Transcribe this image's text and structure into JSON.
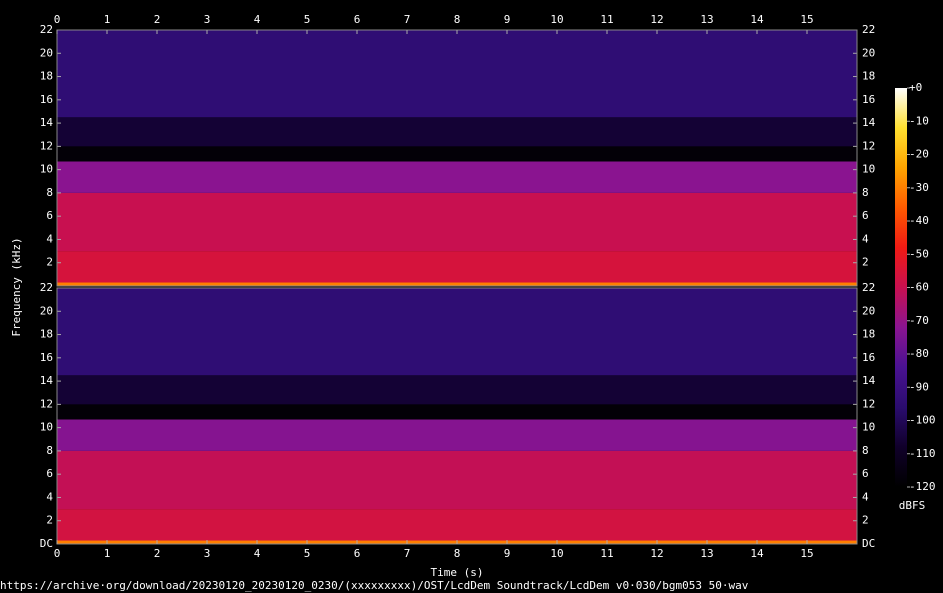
{
  "chart_data": {
    "type": "spectrogram",
    "xlabel": "Time (s)",
    "ylabel": "Frequency (kHz)",
    "colorbar_label": "dBFS",
    "footer": "https://archive·org/download/20230120_20230120_0230/(xxxxxxxxx)/OST/LcdDem Soundtrack/LcdDem v0·030/bgm053 50·wav",
    "xlim": [
      0,
      16
    ],
    "xticks": [
      0,
      1,
      2,
      3,
      4,
      5,
      6,
      7,
      8,
      9,
      10,
      11,
      12,
      13,
      14,
      15
    ],
    "zlim": [
      -120,
      0
    ],
    "zticks": [
      {
        "value": 0,
        "label": "+0"
      },
      -10,
      -20,
      -30,
      -40,
      -50,
      -60,
      -70,
      -80,
      -90,
      -100,
      -110,
      -120
    ],
    "colormap": [
      "#000000",
      "#10002a",
      "#2a0c6e",
      "#4a1292",
      "#8a1490",
      "#c81050",
      "#f01a14",
      "#ff5a00",
      "#ffa400",
      "#ffe030",
      "#ffffff"
    ],
    "channels": [
      {
        "ylim": [
          0,
          22
        ],
        "yticks": [
          2,
          4,
          6,
          8,
          10,
          12,
          14,
          16,
          18,
          20,
          22
        ],
        "bands": [
          {
            "freq": [
              0,
              0.3
            ],
            "level": -30
          },
          {
            "freq": [
              0.3,
              3
            ],
            "level": -56
          },
          {
            "freq": [
              3,
              8
            ],
            "level": -60
          },
          {
            "freq": [
              8,
              10.7
            ],
            "level": -72
          },
          {
            "freq": [
              10.7,
              12
            ],
            "level": -118
          },
          {
            "freq": [
              12,
              14.5
            ],
            "level": -106
          },
          {
            "freq": [
              14.5,
              22
            ],
            "level": -94
          }
        ]
      },
      {
        "ylim": [
          0,
          22
        ],
        "yticks": [
          {
            "value": 0,
            "label": "DC"
          },
          2,
          4,
          6,
          8,
          10,
          12,
          14,
          16,
          18,
          20,
          22
        ],
        "bands": [
          {
            "freq": [
              0,
              0.3
            ],
            "level": -30
          },
          {
            "freq": [
              0.3,
              3
            ],
            "level": -57
          },
          {
            "freq": [
              3,
              8
            ],
            "level": -61
          },
          {
            "freq": [
              8,
              10.7
            ],
            "level": -73
          },
          {
            "freq": [
              10.7,
              12
            ],
            "level": -118
          },
          {
            "freq": [
              12,
              14.5
            ],
            "level": -106
          },
          {
            "freq": [
              14.5,
              22
            ],
            "level": -94
          }
        ]
      }
    ]
  }
}
